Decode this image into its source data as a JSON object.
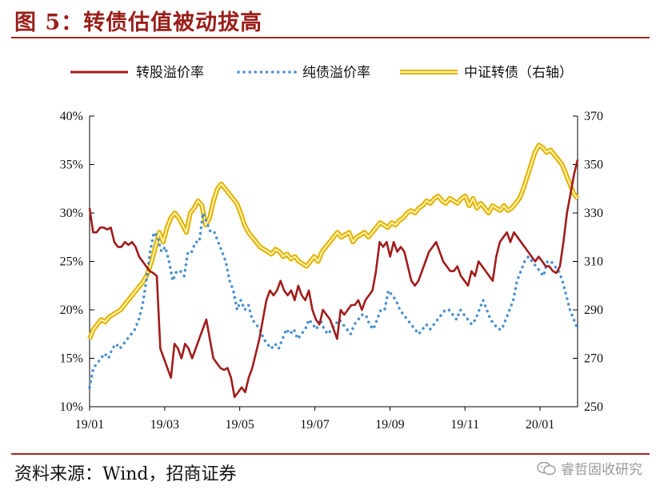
{
  "figure_title": "图 5：转债估值被动拔高",
  "source_note": "资料来源：Wind，招商证券",
  "watermark": "睿哲固收研究",
  "colors": {
    "stock_premium": "#a11c1c",
    "bond_premium": "#4a90cf",
    "index_outer": "#e2b100",
    "index_inner": "#fff4b0",
    "accent_rule": "#a52a24"
  },
  "chart_data": {
    "type": "line",
    "legend_position": "top",
    "grid": false,
    "x_tick_labels": [
      "19/01",
      "19/03",
      "19/05",
      "19/07",
      "19/09",
      "19/11",
      "20/01"
    ],
    "y_left": {
      "min": 0.1,
      "max": 0.4,
      "ticks": [
        "10%",
        "15%",
        "20%",
        "25%",
        "30%",
        "35%",
        "40%"
      ]
    },
    "y_right": {
      "min": 250,
      "max": 370,
      "ticks": [
        "250",
        "270",
        "290",
        "310",
        "330",
        "350",
        "370"
      ]
    },
    "series": [
      {
        "name": "转股溢价率",
        "axis": "left",
        "style": "solid",
        "values": [
          0.305,
          0.28,
          0.28,
          0.285,
          0.285,
          0.283,
          0.285,
          0.27,
          0.265,
          0.265,
          0.27,
          0.267,
          0.27,
          0.265,
          0.255,
          0.25,
          0.245,
          0.24,
          0.238,
          0.235,
          0.16,
          0.15,
          0.14,
          0.13,
          0.165,
          0.16,
          0.15,
          0.165,
          0.16,
          0.15,
          0.16,
          0.17,
          0.18,
          0.19,
          0.17,
          0.15,
          0.145,
          0.14,
          0.138,
          0.14,
          0.13,
          0.11,
          0.115,
          0.12,
          0.115,
          0.13,
          0.14,
          0.155,
          0.17,
          0.19,
          0.21,
          0.22,
          0.215,
          0.22,
          0.23,
          0.22,
          0.215,
          0.22,
          0.21,
          0.225,
          0.215,
          0.21,
          0.22,
          0.2,
          0.19,
          0.185,
          0.2,
          0.195,
          0.19,
          0.18,
          0.17,
          0.2,
          0.195,
          0.2,
          0.205,
          0.205,
          0.21,
          0.2,
          0.21,
          0.215,
          0.22,
          0.24,
          0.27,
          0.265,
          0.27,
          0.255,
          0.27,
          0.26,
          0.265,
          0.26,
          0.245,
          0.23,
          0.225,
          0.23,
          0.24,
          0.25,
          0.26,
          0.265,
          0.27,
          0.26,
          0.25,
          0.245,
          0.24,
          0.24,
          0.245,
          0.235,
          0.23,
          0.225,
          0.24,
          0.235,
          0.25,
          0.245,
          0.24,
          0.235,
          0.23,
          0.255,
          0.27,
          0.275,
          0.28,
          0.27,
          0.28,
          0.275,
          0.27,
          0.265,
          0.26,
          0.255,
          0.25,
          0.255,
          0.25,
          0.245,
          0.245,
          0.24,
          0.238,
          0.245,
          0.27,
          0.3,
          0.32,
          0.34,
          0.355
        ]
      },
      {
        "name": "纯债溢价率",
        "axis": "left",
        "style": "dotted",
        "values": [
          0.12,
          0.14,
          0.145,
          0.15,
          0.155,
          0.15,
          0.16,
          0.165,
          0.16,
          0.165,
          0.17,
          0.175,
          0.18,
          0.19,
          0.205,
          0.23,
          0.26,
          0.28,
          0.275,
          0.26,
          0.265,
          0.25,
          0.23,
          0.24,
          0.24,
          0.235,
          0.26,
          0.26,
          0.27,
          0.27,
          0.3,
          0.29,
          0.28,
          0.28,
          0.27,
          0.26,
          0.25,
          0.23,
          0.22,
          0.2,
          0.21,
          0.2,
          0.205,
          0.19,
          0.185,
          0.18,
          0.17,
          0.165,
          0.16,
          0.165,
          0.16,
          0.17,
          0.18,
          0.175,
          0.18,
          0.17,
          0.175,
          0.18,
          0.19,
          0.185,
          0.18,
          0.19,
          0.18,
          0.175,
          0.18,
          0.185,
          0.19,
          0.185,
          0.18,
          0.175,
          0.185,
          0.19,
          0.195,
          0.195,
          0.185,
          0.18,
          0.19,
          0.2,
          0.2,
          0.22,
          0.215,
          0.21,
          0.2,
          0.195,
          0.19,
          0.185,
          0.18,
          0.175,
          0.18,
          0.185,
          0.18,
          0.185,
          0.19,
          0.195,
          0.2,
          0.2,
          0.195,
          0.19,
          0.2,
          0.195,
          0.19,
          0.185,
          0.19,
          0.2,
          0.21,
          0.2,
          0.19,
          0.185,
          0.18,
          0.18,
          0.19,
          0.2,
          0.21,
          0.23,
          0.24,
          0.25,
          0.255,
          0.25,
          0.245,
          0.24,
          0.235,
          0.25,
          0.25,
          0.245,
          0.24,
          0.23,
          0.215,
          0.2,
          0.19,
          0.18
        ]
      },
      {
        "name": "中证转债（右轴）",
        "axis": "right",
        "style": "double",
        "values": [
          278,
          282,
          284,
          286,
          285,
          287,
          288,
          289,
          290,
          292,
          294,
          296,
          298,
          300,
          302,
          305,
          310,
          316,
          322,
          318,
          324,
          328,
          330,
          328,
          325,
          322,
          330,
          332,
          335,
          333,
          325,
          328,
          335,
          340,
          342,
          340,
          338,
          336,
          334,
          330,
          325,
          322,
          320,
          318,
          316,
          315,
          314,
          313,
          315,
          314,
          312,
          313,
          311,
          312,
          310,
          309,
          308,
          310,
          312,
          310,
          314,
          316,
          318,
          320,
          322,
          320,
          321,
          322,
          318,
          320,
          321,
          322,
          320,
          322,
          324,
          326,
          325,
          324,
          326,
          325,
          327,
          328,
          330,
          331,
          330,
          332,
          333,
          335,
          334,
          336,
          337,
          335,
          334,
          336,
          335,
          334,
          336,
          337,
          333,
          336,
          332,
          334,
          332,
          330,
          333,
          332,
          331,
          333,
          331,
          332,
          334,
          336,
          340,
          345,
          350,
          355,
          358,
          357,
          355,
          356,
          354,
          352,
          350,
          346,
          342,
          338,
          336
        ]
      }
    ]
  }
}
